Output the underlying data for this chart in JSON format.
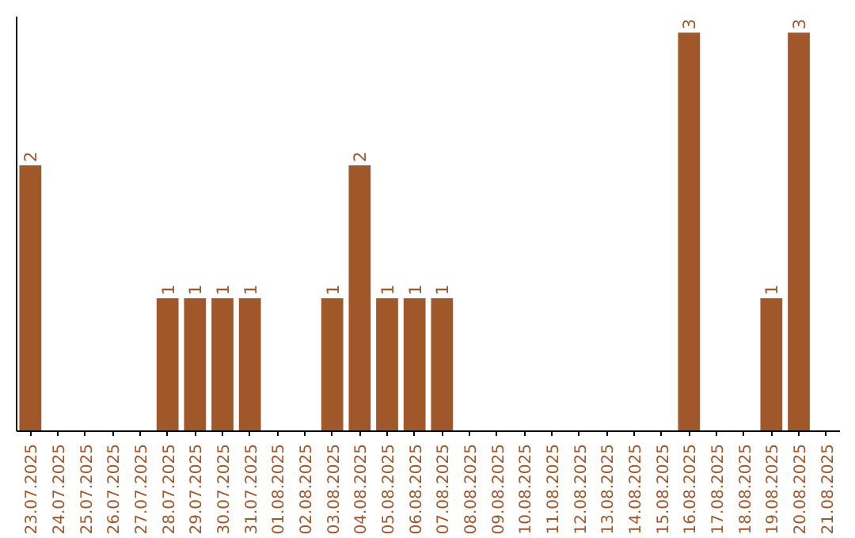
{
  "chart_data": {
    "type": "bar",
    "categories": [
      "23.07.2025",
      "24.07.2025",
      "25.07.2025",
      "26.07.2025",
      "27.07.2025",
      "28.07.2025",
      "29.07.2025",
      "30.07.2025",
      "31.07.2025",
      "01.08.2025",
      "02.08.2025",
      "03.08.2025",
      "04.08.2025",
      "05.08.2025",
      "06.08.2025",
      "07.08.2025",
      "08.08.2025",
      "09.08.2025",
      "10.08.2025",
      "11.08.2025",
      "12.08.2025",
      "13.08.2025",
      "14.08.2025",
      "15.08.2025",
      "16.08.2025",
      "17.08.2025",
      "18.08.2025",
      "19.08.2025",
      "20.08.2025",
      "21.08.2025"
    ],
    "values": [
      2,
      0,
      0,
      0,
      0,
      1,
      1,
      1,
      1,
      0,
      0,
      1,
      2,
      1,
      1,
      1,
      0,
      0,
      0,
      0,
      0,
      0,
      0,
      0,
      3,
      0,
      0,
      1,
      3,
      0
    ],
    "value_labels": [
      "2",
      null,
      null,
      null,
      null,
      "1",
      "1",
      "1",
      "1",
      null,
      null,
      "1",
      "2",
      "1",
      "1",
      "1",
      null,
      null,
      null,
      null,
      null,
      null,
      null,
      null,
      "3",
      null,
      null,
      "1",
      "3",
      null
    ],
    "color": "#a0582a",
    "ylim": [
      0,
      3.12
    ],
    "tick_labels": "x",
    "grid": false
  }
}
